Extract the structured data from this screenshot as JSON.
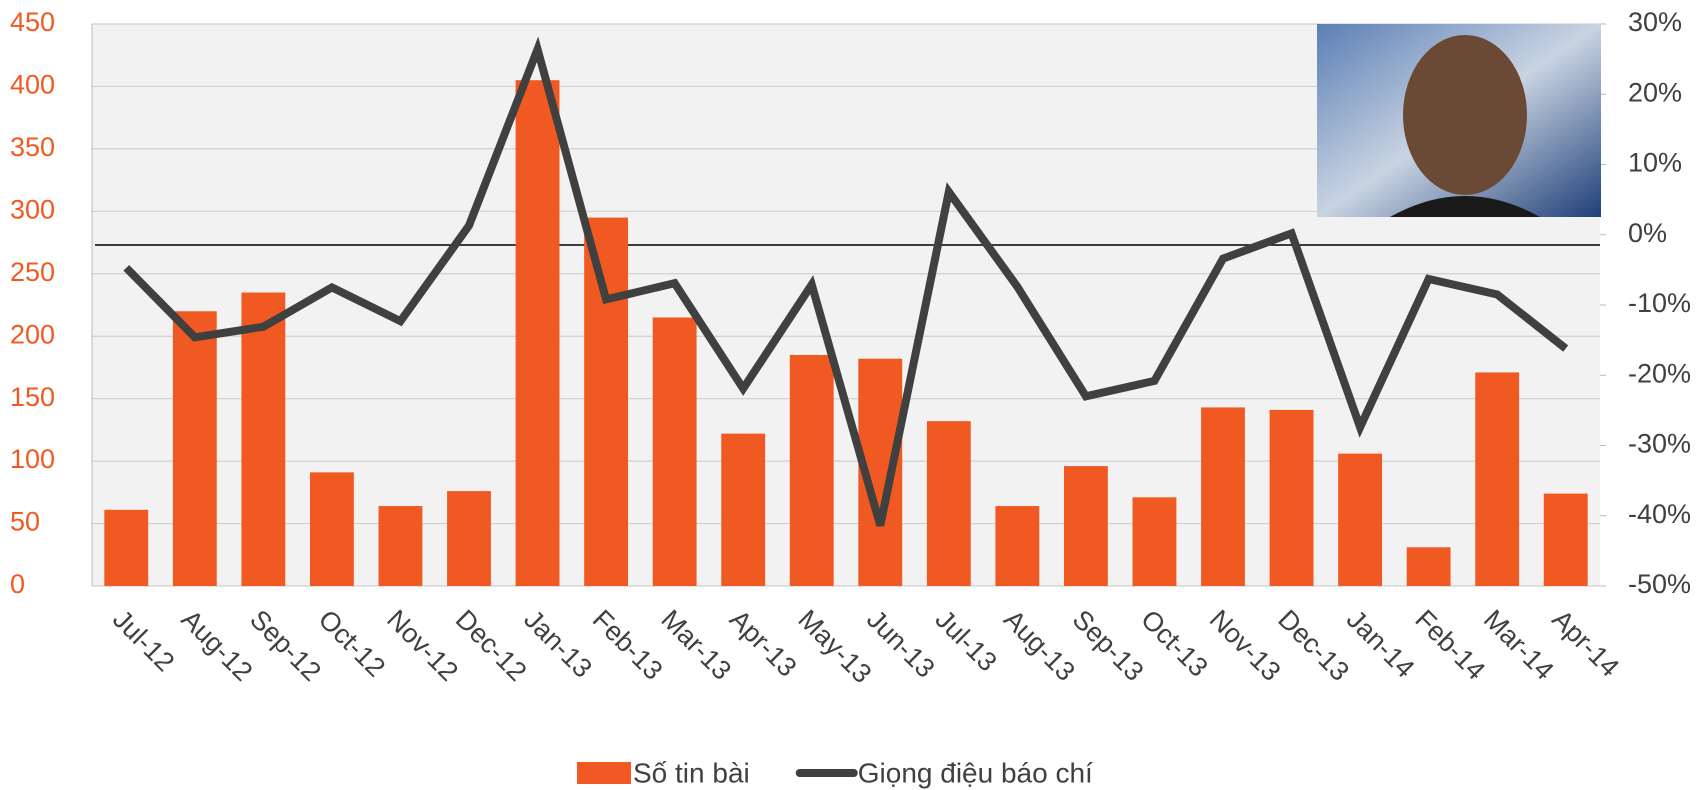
{
  "chart_data": {
    "type": "bar",
    "categories": [
      "Jul-12",
      "Aug-12",
      "Sep-12",
      "Oct-12",
      "Nov-12",
      "Dec-12",
      "Jan-13",
      "Feb-13",
      "Mar-13",
      "Apr-13",
      "May-13",
      "Jun-13",
      "Jul-13",
      "Aug-13",
      "Sep-13",
      "Oct-13",
      "Nov-13",
      "Dec-13",
      "Jan-14",
      "Feb-14",
      "Mar-14",
      "Apr-14"
    ],
    "series": [
      {
        "name": "Số tin bài",
        "type": "bar",
        "color": "#f05a22",
        "values": [
          61,
          220,
          235,
          91,
          64,
          76,
          405,
          295,
          215,
          122,
          185,
          182,
          132,
          64,
          96,
          71,
          143,
          141,
          106,
          31,
          171,
          74
        ]
      },
      {
        "name": "Giọng điệu báo chí",
        "type": "line",
        "axis": "y2",
        "color": "#404040",
        "values": [
          -4.7,
          -14.6,
          -13.1,
          -7.5,
          -12.3,
          1.3,
          26.4,
          -9.2,
          -6.9,
          -21.9,
          -7.1,
          -41.4,
          6.1,
          -7.4,
          -23.0,
          -20.8,
          -3.4,
          0.2,
          -27.4,
          -6.3,
          -8.5,
          -16.2
        ]
      }
    ],
    "ylim": [
      0,
      450
    ],
    "yticks": [
      0,
      50,
      100,
      150,
      200,
      250,
      300,
      350,
      400,
      450
    ],
    "y2lim": [
      -50,
      30
    ],
    "y2ticks": [
      {
        "value": -50,
        "label": "-50%"
      },
      {
        "value": -40,
        "label": "-40%"
      },
      {
        "value": -30,
        "label": "-30%"
      },
      {
        "value": -20,
        "label": "-20%"
      },
      {
        "value": -10,
        "label": "-10%"
      },
      {
        "value": 0,
        "label": "0%"
      },
      {
        "value": 10,
        "label": "10%"
      },
      {
        "value": 20,
        "label": "20%"
      },
      {
        "value": 30,
        "label": "30%"
      }
    ],
    "grid": true
  }
}
